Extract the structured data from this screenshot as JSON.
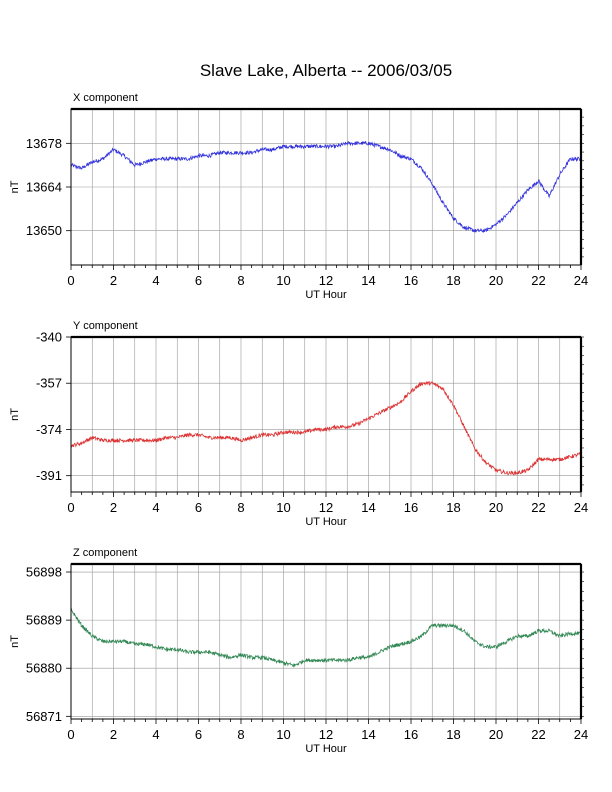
{
  "title": "Slave Lake, Alberta -- 2006/03/05",
  "chart_data": [
    {
      "type": "line",
      "panel_label": "X component",
      "ylabel": "nT",
      "xlabel": "UT Hour",
      "xlim": [
        0,
        24
      ],
      "ylim": [
        13639,
        13689
      ],
      "x_ticks": [
        0,
        2,
        4,
        6,
        8,
        10,
        12,
        14,
        16,
        18,
        20,
        22,
        24
      ],
      "y_ticks": [
        13650,
        13664,
        13678
      ],
      "grid": true,
      "color": "#3333dd",
      "x": [
        0,
        0.5,
        1,
        1.5,
        2,
        2.5,
        3,
        3.5,
        4,
        4.5,
        5,
        5.5,
        6,
        6.5,
        7,
        7.5,
        8,
        8.5,
        9,
        9.5,
        10,
        10.5,
        11,
        11.5,
        12,
        12.5,
        13,
        13.5,
        14,
        14.5,
        15,
        15.5,
        16,
        16.5,
        17,
        17.5,
        18,
        18.5,
        19,
        19.5,
        20,
        20.5,
        21,
        21.5,
        22,
        22.5,
        23,
        23.5,
        24
      ],
      "values": [
        13671,
        13670,
        13672,
        13673,
        13676,
        13674,
        13671,
        13672,
        13673,
        13673,
        13673,
        13673,
        13674,
        13674,
        13675,
        13675,
        13675,
        13675,
        13676,
        13676,
        13677,
        13677,
        13677,
        13677,
        13677,
        13677,
        13678,
        13678,
        13678,
        13677,
        13676,
        13674,
        13673,
        13670,
        13665,
        13659,
        13654,
        13651,
        13650,
        13650,
        13652,
        13655,
        13659,
        13663,
        13666,
        13661,
        13668,
        13673,
        13673
      ]
    },
    {
      "type": "line",
      "panel_label": "Y component",
      "ylabel": "nT",
      "xlabel": "UT Hour",
      "xlim": [
        0,
        24
      ],
      "ylim": [
        -397,
        -340
      ],
      "x_ticks": [
        0,
        2,
        4,
        6,
        8,
        10,
        12,
        14,
        16,
        18,
        20,
        22,
        24
      ],
      "y_ticks": [
        -340,
        -357,
        -374,
        -391
      ],
      "grid": true,
      "color": "#dd3333",
      "x": [
        0,
        0.5,
        1,
        1.5,
        2,
        2.5,
        3,
        3.5,
        4,
        4.5,
        5,
        5.5,
        6,
        6.5,
        7,
        7.5,
        8,
        8.5,
        9,
        9.5,
        10,
        10.5,
        11,
        11.5,
        12,
        12.5,
        13,
        13.5,
        14,
        14.5,
        15,
        15.5,
        16,
        16.5,
        17,
        17.5,
        18,
        18.5,
        19,
        19.5,
        20,
        20.5,
        21,
        21.5,
        22,
        22.5,
        23,
        23.5,
        24
      ],
      "values": [
        -380,
        -379,
        -377,
        -378,
        -378,
        -378,
        -378,
        -378,
        -378,
        -377,
        -377,
        -376,
        -376,
        -377,
        -377,
        -377,
        -378,
        -377,
        -376,
        -376,
        -375,
        -375,
        -375,
        -374,
        -374,
        -373,
        -373,
        -372,
        -370,
        -368,
        -366,
        -364,
        -360,
        -357,
        -357,
        -359,
        -365,
        -373,
        -381,
        -386,
        -389,
        -390,
        -390,
        -389,
        -385,
        -385,
        -385,
        -384,
        -383
      ]
    },
    {
      "type": "line",
      "panel_label": "Z component",
      "ylabel": "nT",
      "xlabel": "UT Hour",
      "xlim": [
        0,
        24
      ],
      "ylim": [
        56870.5,
        56899.5
      ],
      "x_ticks": [
        0,
        2,
        4,
        6,
        8,
        10,
        12,
        14,
        16,
        18,
        20,
        22,
        24
      ],
      "y_ticks": [
        56871,
        56880,
        56889,
        56898
      ],
      "grid": true,
      "color": "#338855",
      "x": [
        0,
        0.5,
        1,
        1.5,
        2,
        2.5,
        3,
        3.5,
        4,
        4.5,
        5,
        5.5,
        6,
        6.5,
        7,
        7.5,
        8,
        8.5,
        9,
        9.5,
        10,
        10.5,
        11,
        11.5,
        12,
        12.5,
        13,
        13.5,
        14,
        14.5,
        15,
        15.5,
        16,
        16.5,
        17,
        17.5,
        18,
        18.5,
        19,
        19.5,
        20,
        20.5,
        21,
        21.5,
        22,
        22.5,
        23,
        23.5,
        24
      ],
      "values": [
        56891,
        56888,
        56886,
        56885,
        56885,
        56885,
        56884.5,
        56884.5,
        56884,
        56883.5,
        56883.5,
        56883,
        56883,
        56883,
        56882.5,
        56882,
        56882.5,
        56882,
        56882,
        56881.5,
        56881,
        56880.5,
        56881.5,
        56881.5,
        56881.5,
        56881.5,
        56881.5,
        56882,
        56882,
        56883,
        56884,
        56884.5,
        56885,
        56886,
        56888,
        56888,
        56888,
        56887,
        56885,
        56884,
        56884,
        56885,
        56886,
        56886,
        56887,
        56887,
        56886,
        56886.5,
        56886.5
      ]
    }
  ]
}
